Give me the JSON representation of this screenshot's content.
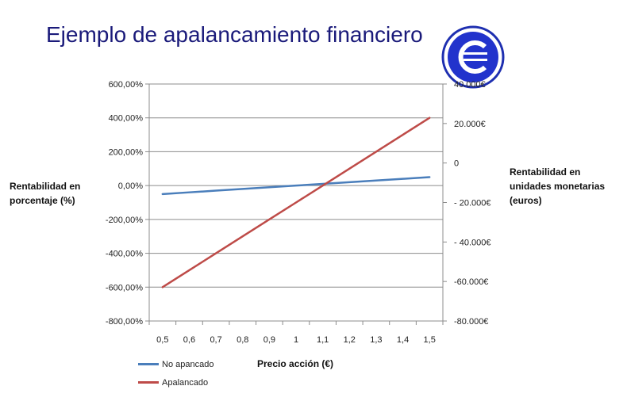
{
  "title": "Ejemplo de apalancamiento financiero",
  "logo": {
    "icon": "euro-circle-logo-icon",
    "ring_color": "#1e2fb0",
    "fill_color": "#2233cc"
  },
  "chart_data": {
    "type": "line",
    "xlabel": "Precio acción (€)",
    "ylabel_left": [
      "Rentabilidad en",
      "porcentaje (%)"
    ],
    "ylabel_right": [
      "Rentabilidad en",
      "unidades monetarias",
      "(euros)"
    ],
    "categories": [
      "0,5",
      "0,6",
      "0,7",
      "0,8",
      "0,9",
      "1",
      "1,1",
      "1,2",
      "1,3",
      "1,4",
      "1,5"
    ],
    "y_left": {
      "ylim": [
        -800,
        600
      ],
      "ticks": [
        600,
        400,
        200,
        0,
        -200,
        -400,
        -600,
        -800
      ],
      "tick_labels": [
        "600,00%",
        "400,00%",
        "200,00%",
        "0,00%",
        "-200,00%",
        "-400,00%",
        "-600,00%",
        "-800,00%"
      ]
    },
    "y_right": {
      "ylim": [
        -80000,
        40000
      ],
      "ticks": [
        40000,
        20000,
        0,
        -20000,
        -40000,
        -60000,
        -80000
      ],
      "tick_labels": [
        "40.000€",
        "20.000€",
        "0",
        "- 20.000€",
        "- 40.000€",
        "-60.000€",
        "-80.000€"
      ]
    },
    "grid": true,
    "legend_position": "bottom-left",
    "series": [
      {
        "name": "No apancado",
        "axis": "left",
        "color": "#4a7ebb",
        "values": [
          -50,
          -40,
          -30,
          -20,
          -10,
          0,
          10,
          20,
          30,
          40,
          50
        ]
      },
      {
        "name": "Apalancado",
        "axis": "left",
        "color": "#be4b48",
        "values": [
          -600,
          -500,
          -400,
          -300,
          -200,
          -100,
          0,
          100,
          200,
          300,
          400
        ]
      }
    ]
  }
}
